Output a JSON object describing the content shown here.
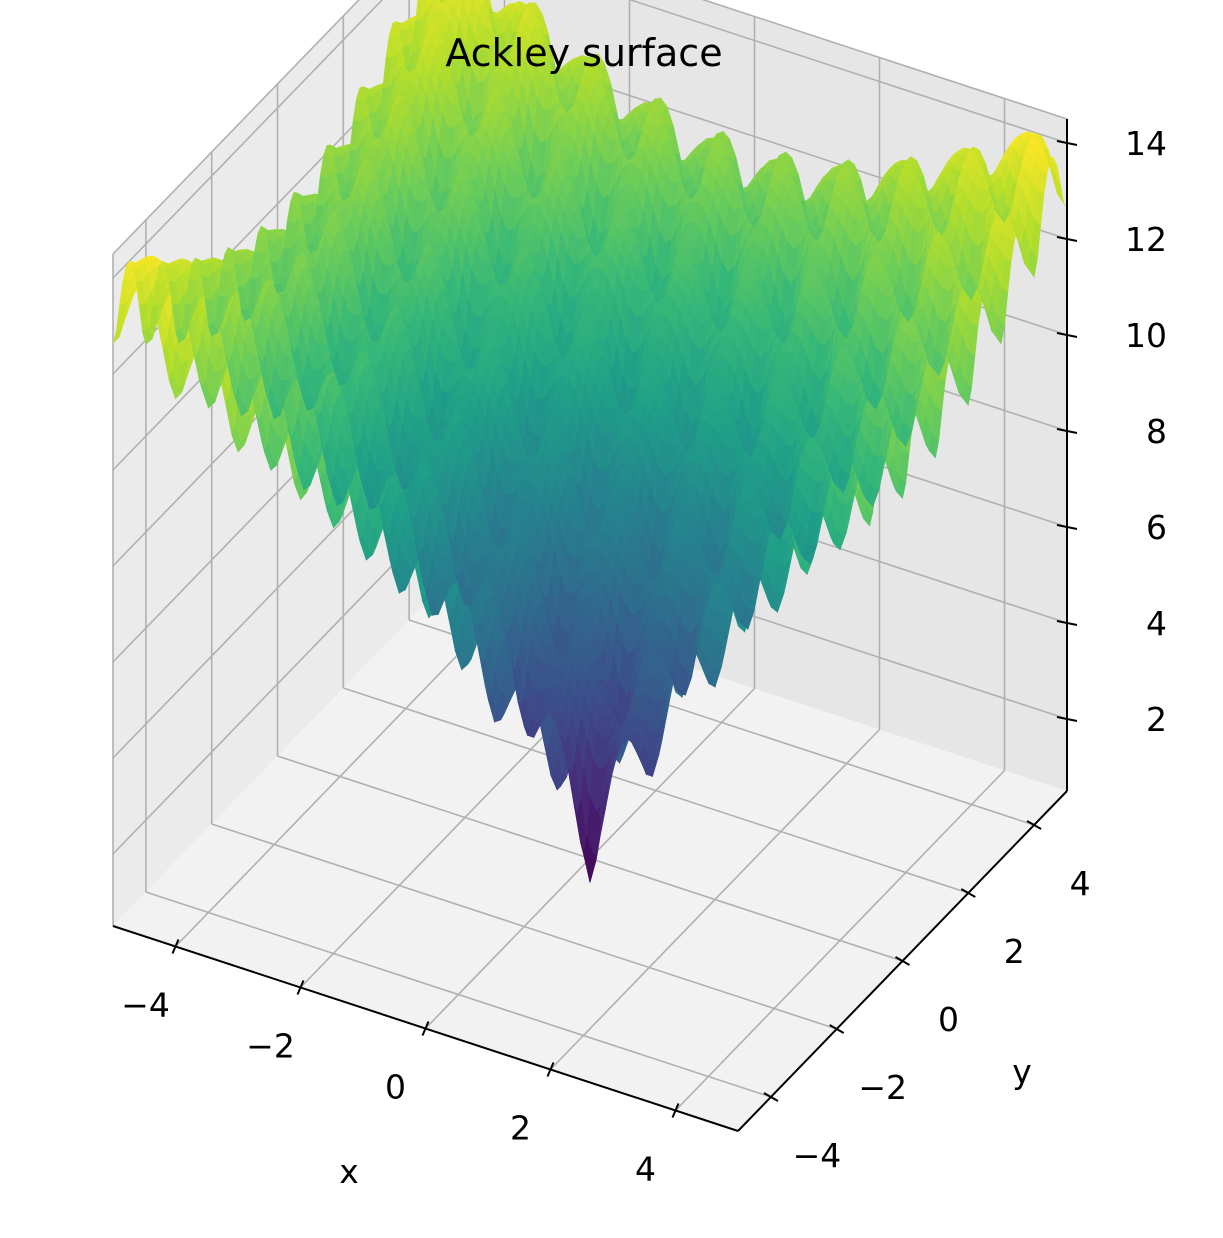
{
  "chart_data": {
    "type": "surface",
    "title": "Ackley surface",
    "function": "ackley",
    "colormap": "viridis",
    "xlabel": "x",
    "ylabel": "y",
    "zlabel": "",
    "xlim": [
      -5,
      5
    ],
    "ylim": [
      -5,
      5
    ],
    "zlim": [
      0.5,
      14.5
    ],
    "x_ticks": [
      -4,
      -2,
      0,
      2,
      4
    ],
    "y_ticks": [
      -4,
      -2,
      0,
      2,
      4
    ],
    "z_ticks": [
      2,
      4,
      6,
      8,
      10,
      12,
      14
    ],
    "x_tick_labels": [
      "−4",
      "−2",
      "0",
      "2",
      "4"
    ],
    "y_tick_labels": [
      "−4",
      "−2",
      "0",
      "2",
      "4"
    ],
    "z_tick_labels": [
      "2",
      "4",
      "6",
      "8",
      "10",
      "12",
      "14"
    ],
    "z_min": 0,
    "z_max": 14.3,
    "grid": true
  }
}
